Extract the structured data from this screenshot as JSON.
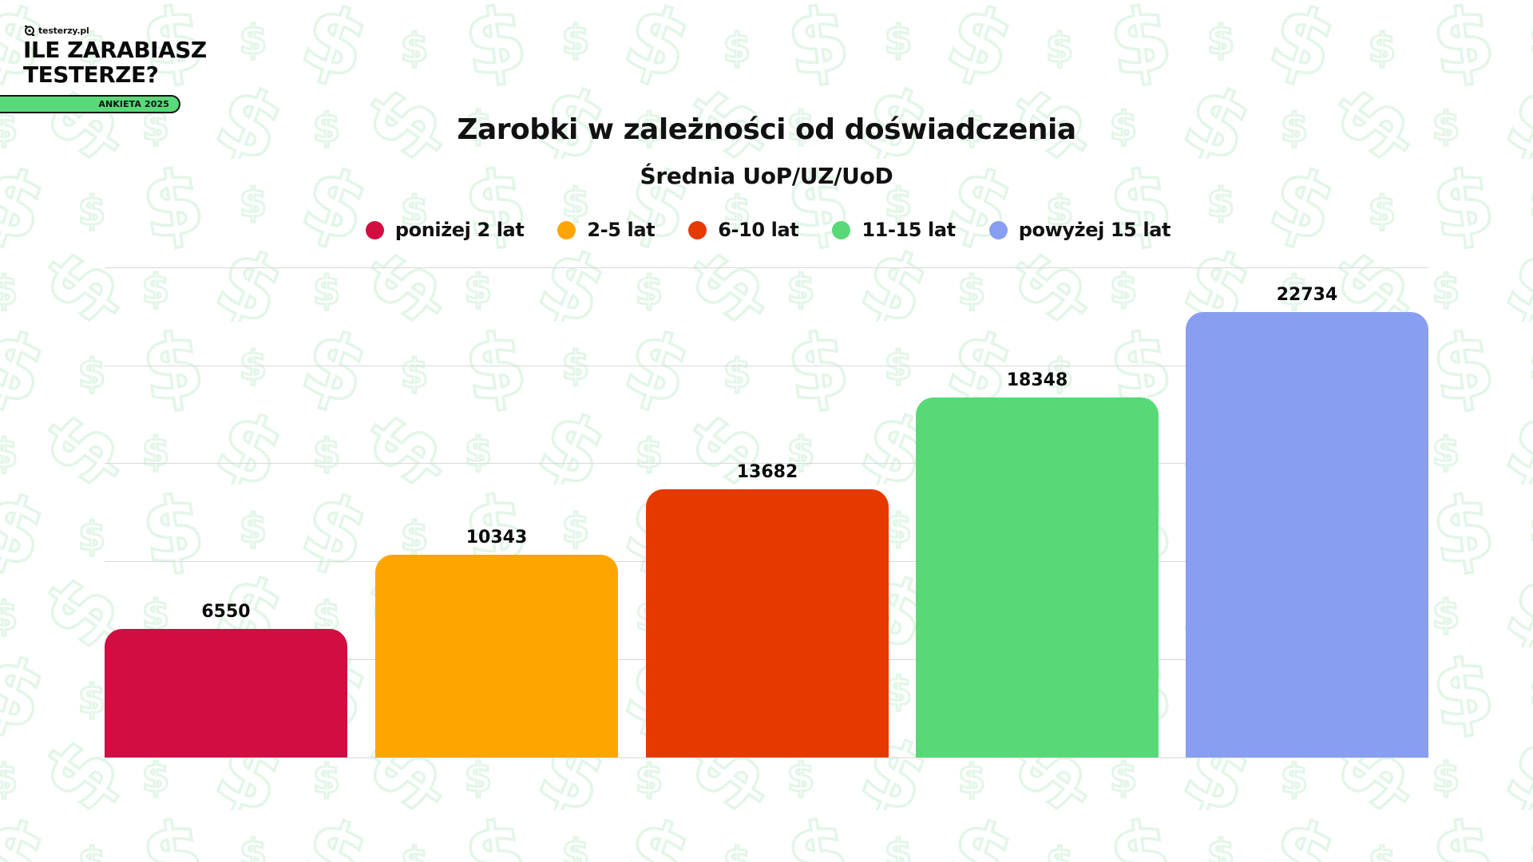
{
  "branding": {
    "site": "testerzy.pl",
    "headline_line1": "ILE ZARABIASZ",
    "headline_line2": "TESTERZE?",
    "badge": "ANKIETA 2025",
    "badge_color": "#5ad97a"
  },
  "chart": {
    "title": "Zarobki w zależności od doświadczenia",
    "subtitle": "Średnia UoP/UZ/UoD"
  },
  "legend": [
    {
      "label": "poniżej 2 lat",
      "color": "#d10d42"
    },
    {
      "label": "2-5 lat",
      "color": "#ffa500"
    },
    {
      "label": "6-10 lat",
      "color": "#e63900"
    },
    {
      "label": "11-15 lat",
      "color": "#57d977"
    },
    {
      "label": "powyżej 15 lat",
      "color": "#889ef0"
    }
  ],
  "bar_labels": [
    "6550",
    "10343",
    "13682",
    "18348",
    "22734"
  ],
  "chart_data": {
    "type": "bar",
    "title": "Zarobki w zależności od doświadczenia",
    "subtitle": "Średnia UoP/UZ/UoD",
    "categories": [
      "poniżej 2 lat",
      "2-5 lat",
      "6-10 lat",
      "11-15 lat",
      "powyżej 15 lat"
    ],
    "values": [
      6550,
      10343,
      13682,
      18348,
      22734
    ],
    "colors": [
      "#d10d42",
      "#ffa500",
      "#e63900",
      "#57d977",
      "#889ef0"
    ],
    "xlabel": "",
    "ylabel": "",
    "ylim": [
      0,
      25000
    ],
    "gridlines": [
      0,
      5000,
      10000,
      15000,
      20000,
      25000
    ],
    "grid": true,
    "y_tick_labels_visible": false,
    "data_labels": true,
    "legend_position": "top"
  }
}
